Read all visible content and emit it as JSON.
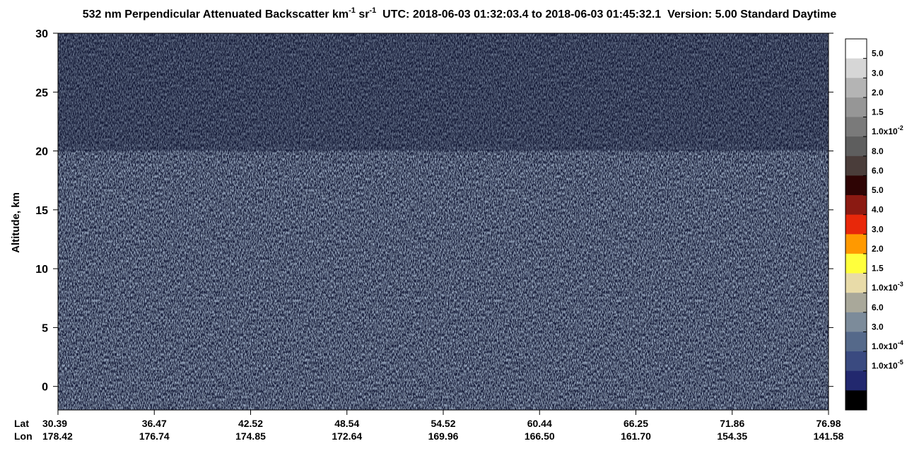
{
  "chart_data": {
    "type": "curtain",
    "title": {
      "part1": "532 nm Perpendicular Attenuated Backscatter km",
      "sup1": "-1",
      "part2": " sr",
      "sup2": "-1",
      "part3": "  UTC: 2018-06-03 01:32:03.4 to 2018-06-03 01:45:32.1  Version: 5.00 Standard Daytime"
    },
    "y_label": "Altitude, km",
    "ylim": [
      -2,
      30
    ],
    "yticks": [
      0,
      5,
      10,
      15,
      20,
      25,
      30
    ],
    "x_rows": [
      {
        "name": "Lat",
        "labels": [
          "30.39",
          "36.47",
          "42.52",
          "48.54",
          "54.52",
          "60.44",
          "66.25",
          "71.86",
          "76.98"
        ]
      },
      {
        "name": "Lon",
        "labels": [
          "178.42",
          "176.74",
          "174.85",
          "172.64",
          "169.96",
          "166.50",
          "161.70",
          "154.35",
          "141.58"
        ]
      }
    ],
    "colorbar": {
      "colors": [
        "#ffffff",
        "#d6d6d6",
        "#b4b4b4",
        "#969696",
        "#7a7a7a",
        "#5e5e5e",
        "#4a3d3a",
        "#2e0404",
        "#8b1a12",
        "#e8280a",
        "#ff9900",
        "#ffff3c",
        "#e8dba8",
        "#a9a89a",
        "#7c8b9a",
        "#55698a",
        "#3a4a80",
        "#22286e",
        "#000000"
      ],
      "labels": [
        "5.0",
        "3.0",
        "2.0",
        "1.5",
        {
          "text": "1.0x10",
          "sup": "-2"
        },
        "8.0",
        "6.0",
        "5.0",
        "4.0",
        "3.0",
        "2.0",
        "1.5",
        {
          "text": "1.0x10",
          "sup": "-3"
        },
        "6.0",
        "3.0",
        {
          "text": "1.0x10",
          "sup": "-4"
        },
        {
          "text": "1.0x10",
          "sup": "-5"
        }
      ]
    }
  }
}
